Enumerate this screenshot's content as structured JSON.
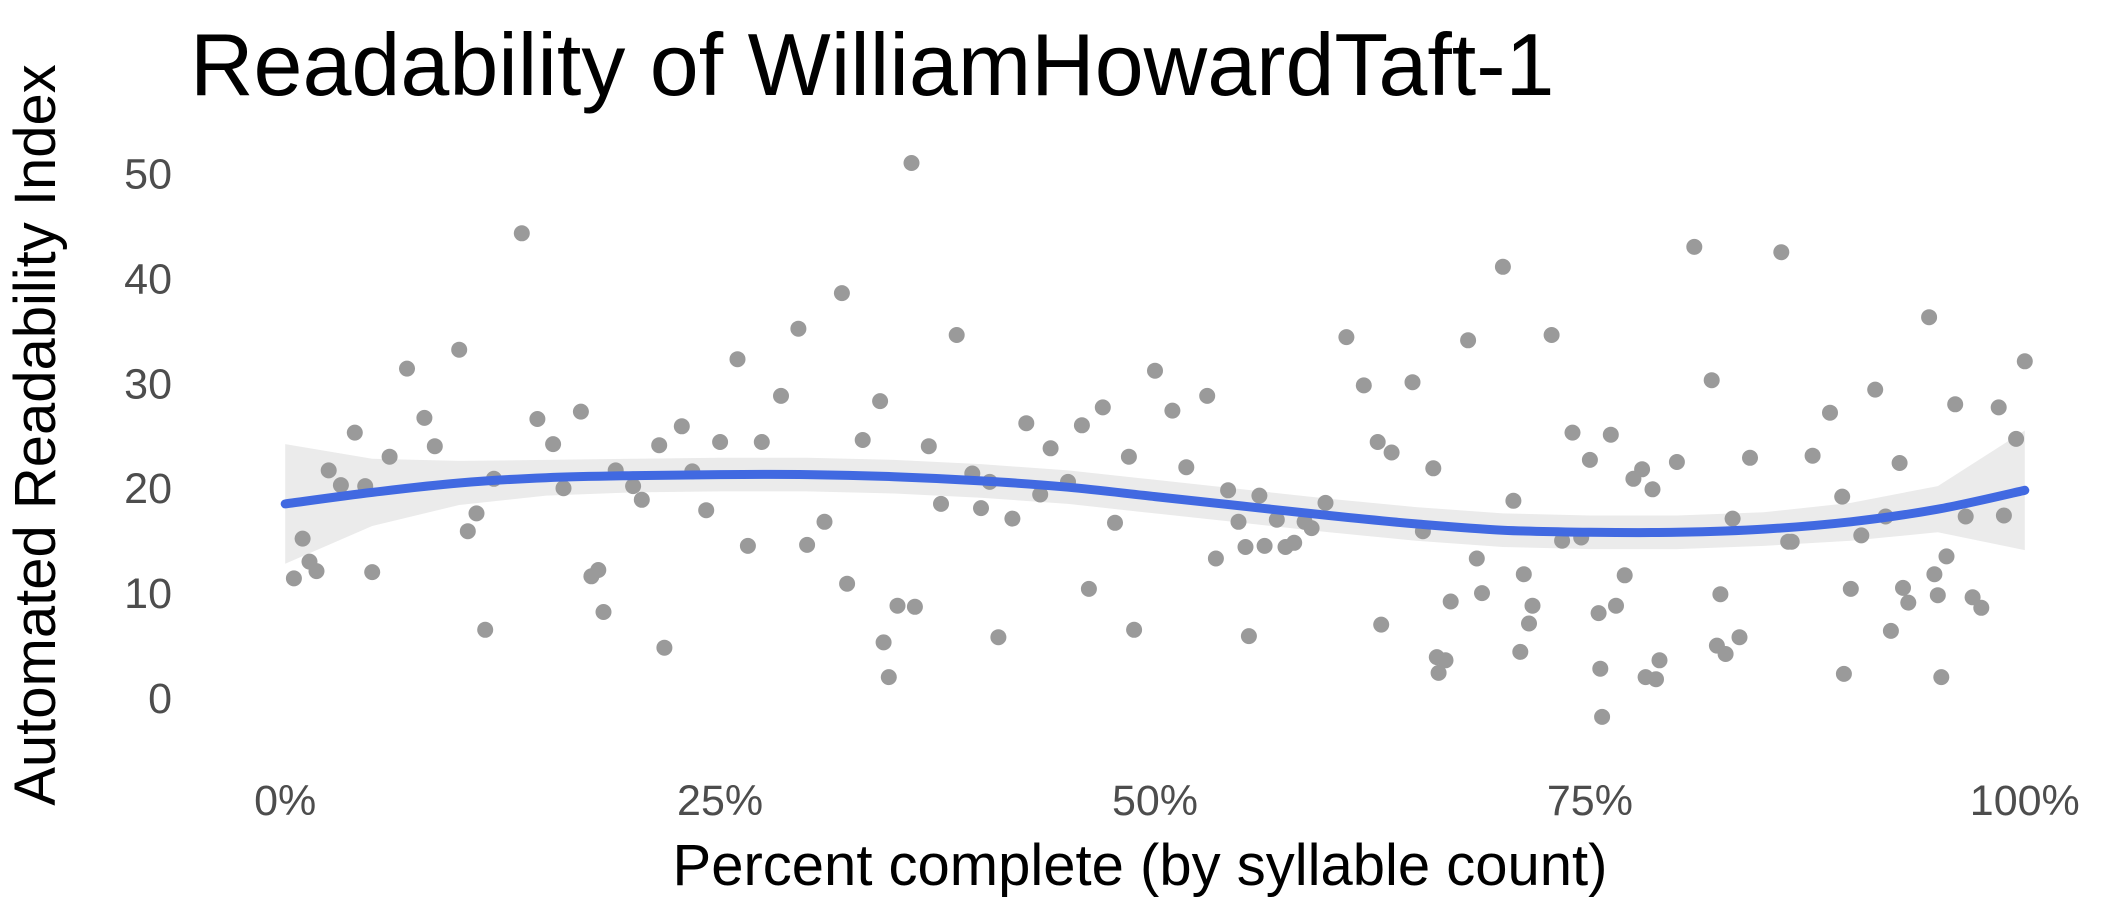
{
  "chart_data": {
    "type": "scatter",
    "title": "Readability of WilliamHowardTaft-1",
    "xlabel": "Percent complete (by syllable count)",
    "ylabel": "Automated Readability Index",
    "xlim": [
      -0.03,
      1.03
    ],
    "ylim": [
      -4,
      53
    ],
    "x_ticks": [
      0,
      0.25,
      0.5,
      0.75,
      1.0
    ],
    "x_tick_labels": [
      "0%",
      "25%",
      "50%",
      "75%",
      "100%"
    ],
    "y_ticks": [
      0,
      10,
      20,
      30,
      40,
      50
    ],
    "y_tick_labels": [
      "0",
      "10",
      "20",
      "30",
      "40",
      "50"
    ],
    "grid": false,
    "legend": "none",
    "colors": {
      "points": "#9a9a9a",
      "smooth_line": "#4169e1",
      "confidence_band": "#ebebeb"
    },
    "series": [
      {
        "kind": "points",
        "points": [
          [
            0.005,
            11.4
          ],
          [
            0.01,
            15.2
          ],
          [
            0.014,
            13.0
          ],
          [
            0.018,
            12.1
          ],
          [
            0.025,
            21.7
          ],
          [
            0.032,
            20.3
          ],
          [
            0.04,
            25.3
          ],
          [
            0.046,
            20.2
          ],
          [
            0.05,
            12.0
          ],
          [
            0.06,
            23.0
          ],
          [
            0.07,
            31.4
          ],
          [
            0.08,
            26.7
          ],
          [
            0.086,
            24.0
          ],
          [
            0.1,
            33.2
          ],
          [
            0.105,
            15.9
          ],
          [
            0.11,
            17.6
          ],
          [
            0.115,
            6.5
          ],
          [
            0.12,
            20.9
          ],
          [
            0.136,
            44.3
          ],
          [
            0.145,
            26.6
          ],
          [
            0.154,
            24.2
          ],
          [
            0.16,
            20.0
          ],
          [
            0.17,
            27.3
          ],
          [
            0.176,
            11.6
          ],
          [
            0.18,
            12.2
          ],
          [
            0.183,
            8.2
          ],
          [
            0.19,
            21.7
          ],
          [
            0.2,
            20.2
          ],
          [
            0.205,
            18.9
          ],
          [
            0.215,
            24.1
          ],
          [
            0.218,
            4.8
          ],
          [
            0.228,
            25.9
          ],
          [
            0.234,
            21.6
          ],
          [
            0.242,
            17.9
          ],
          [
            0.25,
            24.4
          ],
          [
            0.26,
            32.3
          ],
          [
            0.266,
            14.5
          ],
          [
            0.274,
            24.4
          ],
          [
            0.285,
            28.8
          ],
          [
            0.295,
            35.2
          ],
          [
            0.3,
            14.6
          ],
          [
            0.31,
            16.8
          ],
          [
            0.32,
            38.6
          ],
          [
            0.323,
            10.9
          ],
          [
            0.332,
            24.6
          ],
          [
            0.342,
            28.3
          ],
          [
            0.344,
            5.3
          ],
          [
            0.347,
            2.0
          ],
          [
            0.352,
            8.8
          ],
          [
            0.36,
            51.0
          ],
          [
            0.362,
            8.7
          ],
          [
            0.37,
            24.0
          ],
          [
            0.377,
            18.5
          ],
          [
            0.386,
            34.6
          ],
          [
            0.395,
            21.4
          ],
          [
            0.4,
            18.1
          ],
          [
            0.405,
            20.6
          ],
          [
            0.41,
            5.8
          ],
          [
            0.418,
            17.1
          ],
          [
            0.426,
            26.2
          ],
          [
            0.434,
            19.4
          ],
          [
            0.44,
            23.8
          ],
          [
            0.45,
            20.6
          ],
          [
            0.458,
            26.0
          ],
          [
            0.462,
            10.4
          ],
          [
            0.47,
            27.7
          ],
          [
            0.477,
            16.7
          ],
          [
            0.485,
            23.0
          ],
          [
            0.488,
            6.5
          ],
          [
            0.5,
            31.2
          ],
          [
            0.51,
            27.4
          ],
          [
            0.518,
            22.0
          ],
          [
            0.53,
            28.8
          ],
          [
            0.535,
            13.3
          ],
          [
            0.542,
            19.8
          ],
          [
            0.548,
            16.8
          ],
          [
            0.552,
            14.4
          ],
          [
            0.554,
            5.9
          ],
          [
            0.56,
            19.3
          ],
          [
            0.563,
            14.5
          ],
          [
            0.57,
            17.0
          ],
          [
            0.575,
            14.4
          ],
          [
            0.58,
            14.8
          ],
          [
            0.586,
            16.8
          ],
          [
            0.59,
            16.2
          ],
          [
            0.598,
            18.6
          ],
          [
            0.61,
            34.4
          ],
          [
            0.62,
            29.8
          ],
          [
            0.628,
            24.4
          ],
          [
            0.63,
            7.0
          ],
          [
            0.636,
            23.4
          ],
          [
            0.648,
            30.1
          ],
          [
            0.654,
            15.9
          ],
          [
            0.66,
            21.9
          ],
          [
            0.662,
            3.9
          ],
          [
            0.663,
            2.4
          ],
          [
            0.667,
            3.6
          ],
          [
            0.67,
            9.2
          ],
          [
            0.68,
            34.1
          ],
          [
            0.685,
            13.3
          ],
          [
            0.688,
            10.0
          ],
          [
            0.7,
            41.1
          ],
          [
            0.706,
            18.8
          ],
          [
            0.71,
            4.4
          ],
          [
            0.712,
            11.8
          ],
          [
            0.715,
            7.1
          ],
          [
            0.717,
            8.8
          ],
          [
            0.728,
            34.6
          ],
          [
            0.734,
            15.0
          ],
          [
            0.74,
            25.3
          ],
          [
            0.745,
            15.3
          ],
          [
            0.75,
            22.7
          ],
          [
            0.755,
            8.1
          ],
          [
            0.756,
            2.8
          ],
          [
            0.757,
            -1.8
          ],
          [
            0.762,
            25.1
          ],
          [
            0.765,
            8.8
          ],
          [
            0.77,
            11.7
          ],
          [
            0.775,
            20.9
          ],
          [
            0.78,
            21.8
          ],
          [
            0.782,
            2.0
          ],
          [
            0.786,
            19.9
          ],
          [
            0.788,
            1.8
          ],
          [
            0.79,
            3.6
          ],
          [
            0.8,
            22.5
          ],
          [
            0.81,
            43.0
          ],
          [
            0.82,
            30.3
          ],
          [
            0.823,
            5.0
          ],
          [
            0.825,
            9.9
          ],
          [
            0.828,
            4.2
          ],
          [
            0.832,
            17.1
          ],
          [
            0.836,
            5.8
          ],
          [
            0.842,
            22.9
          ],
          [
            0.86,
            42.5
          ],
          [
            0.864,
            14.9
          ],
          [
            0.866,
            14.9
          ],
          [
            0.878,
            23.1
          ],
          [
            0.888,
            27.2
          ],
          [
            0.895,
            19.2
          ],
          [
            0.896,
            2.3
          ],
          [
            0.9,
            10.4
          ],
          [
            0.906,
            15.5
          ],
          [
            0.914,
            29.4
          ],
          [
            0.92,
            17.3
          ],
          [
            0.923,
            6.4
          ],
          [
            0.928,
            22.4
          ],
          [
            0.93,
            10.5
          ],
          [
            0.933,
            9.1
          ],
          [
            0.945,
            36.3
          ],
          [
            0.948,
            11.8
          ],
          [
            0.95,
            9.8
          ],
          [
            0.952,
            2.0
          ],
          [
            0.955,
            13.5
          ],
          [
            0.96,
            28.0
          ],
          [
            0.966,
            17.3
          ],
          [
            0.97,
            9.6
          ],
          [
            0.975,
            8.6
          ],
          [
            0.985,
            27.7
          ],
          [
            0.988,
            17.4
          ],
          [
            0.995,
            24.7
          ],
          [
            1.0,
            32.1
          ]
        ]
      },
      {
        "kind": "smooth",
        "x": [
          0,
          0.05,
          0.1,
          0.15,
          0.2,
          0.25,
          0.3,
          0.35,
          0.4,
          0.45,
          0.5,
          0.55,
          0.6,
          0.65,
          0.7,
          0.75,
          0.8,
          0.85,
          0.9,
          0.95,
          1.0
        ],
        "y": [
          18.5,
          19.6,
          20.5,
          21.0,
          21.2,
          21.3,
          21.3,
          21.1,
          20.7,
          20.1,
          19.2,
          18.3,
          17.4,
          16.6,
          16.0,
          15.8,
          15.8,
          16.1,
          16.8,
          18.0,
          19.8
        ],
        "ci_lower": [
          12.8,
          16.4,
          18.4,
          19.3,
          19.6,
          19.7,
          19.7,
          19.5,
          19.1,
          18.5,
          17.6,
          16.7,
          15.8,
          15.0,
          14.4,
          14.2,
          14.2,
          14.5,
          15.0,
          15.8,
          14.1
        ],
        "ci_upper": [
          24.2,
          22.8,
          22.6,
          22.7,
          22.8,
          22.9,
          22.9,
          22.7,
          22.3,
          21.7,
          20.8,
          19.9,
          19.0,
          18.2,
          17.6,
          17.4,
          17.4,
          17.7,
          18.6,
          20.2,
          25.5
        ]
      }
    ]
  }
}
